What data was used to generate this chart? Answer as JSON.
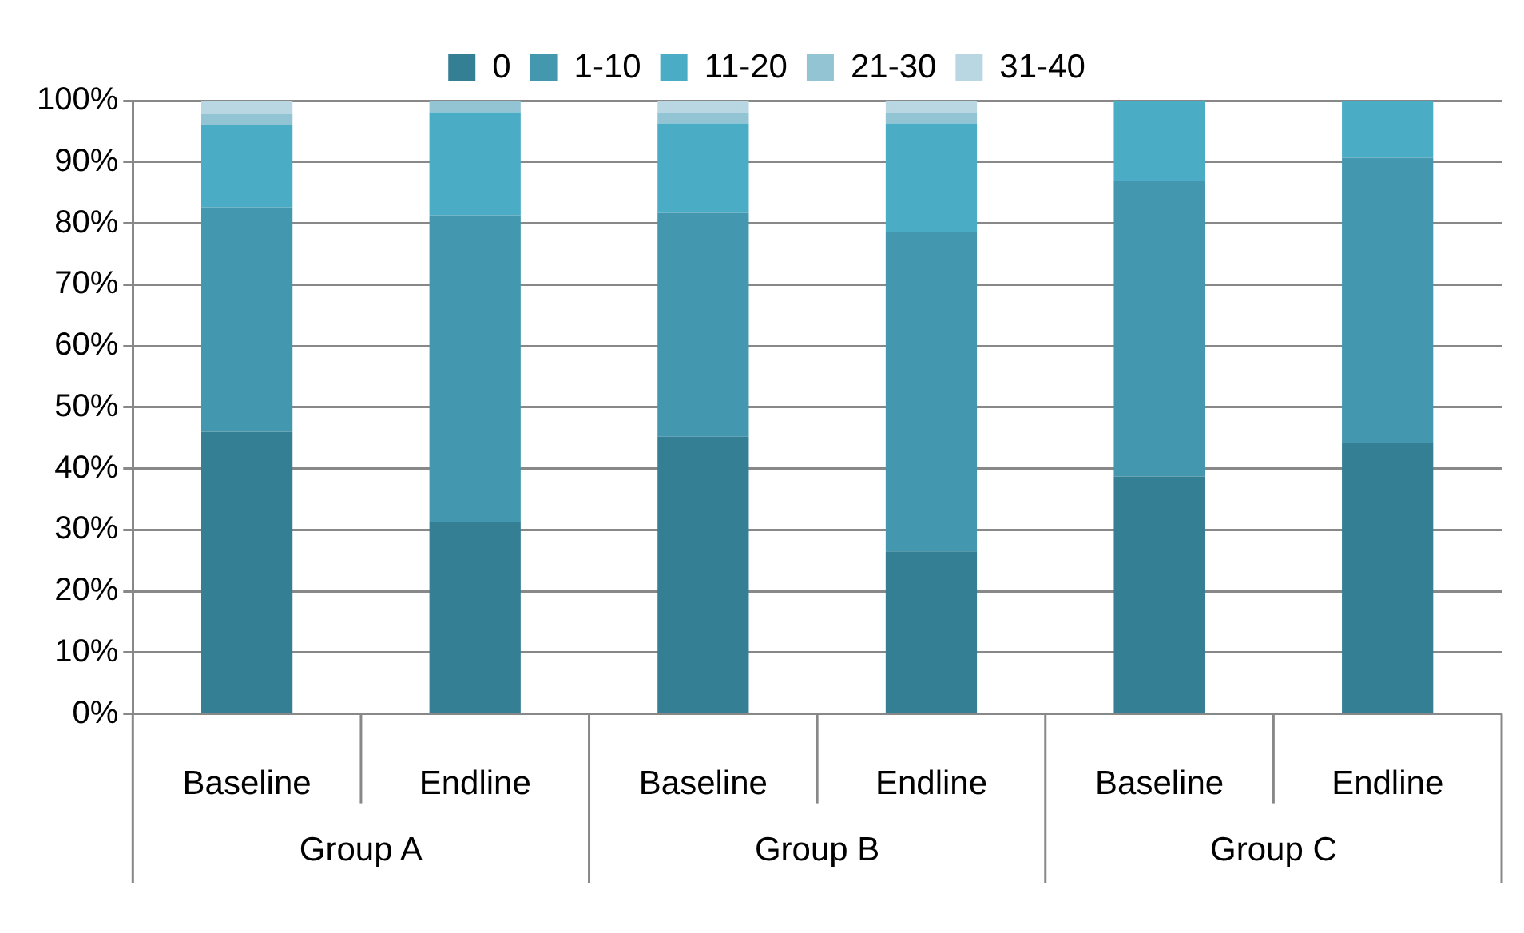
{
  "chart_data": {
    "type": "bar",
    "stacked": true,
    "categories": [
      "Baseline",
      "Endline",
      "Baseline",
      "Endline",
      "Baseline",
      "Endline"
    ],
    "annotations": [
      "Group A",
      "Group B",
      "Group C"
    ],
    "series": [
      {
        "name": "0",
        "color": "#357f94",
        "values": [
          46.0,
          31.2,
          45.2,
          26.5,
          38.7,
          44.2
        ]
      },
      {
        "name": "1-10",
        "color": "#4398b0",
        "values": [
          36.6,
          50.1,
          36.5,
          52.0,
          48.2,
          46.5
        ]
      },
      {
        "name": "11-20",
        "color": "#4bacc6",
        "values": [
          13.4,
          16.8,
          14.6,
          17.8,
          13.1,
          9.3
        ]
      },
      {
        "name": "21-30",
        "color": "#93c4d4",
        "values": [
          1.8,
          1.9,
          1.7,
          1.7,
          0,
          0
        ]
      },
      {
        "name": "31-40",
        "color": "#b9d7e3",
        "values": [
          2.2,
          0,
          2.0,
          2.0,
          0,
          0
        ]
      }
    ],
    "ylim": [
      0,
      100
    ],
    "yticks": [
      {
        "value": 0,
        "label": "0%"
      },
      {
        "value": 10,
        "label": "10%"
      },
      {
        "value": 20,
        "label": "20%"
      },
      {
        "value": 30,
        "label": "30%"
      },
      {
        "value": 40,
        "label": "40%"
      },
      {
        "value": 50,
        "label": "50%"
      },
      {
        "value": 60,
        "label": "60%"
      },
      {
        "value": 70,
        "label": "70%"
      },
      {
        "value": 80,
        "label": "80%"
      },
      {
        "value": 90,
        "label": "90%"
      },
      {
        "value": 100,
        "label": "100%"
      }
    ],
    "grid": "y",
    "legend": "top"
  }
}
